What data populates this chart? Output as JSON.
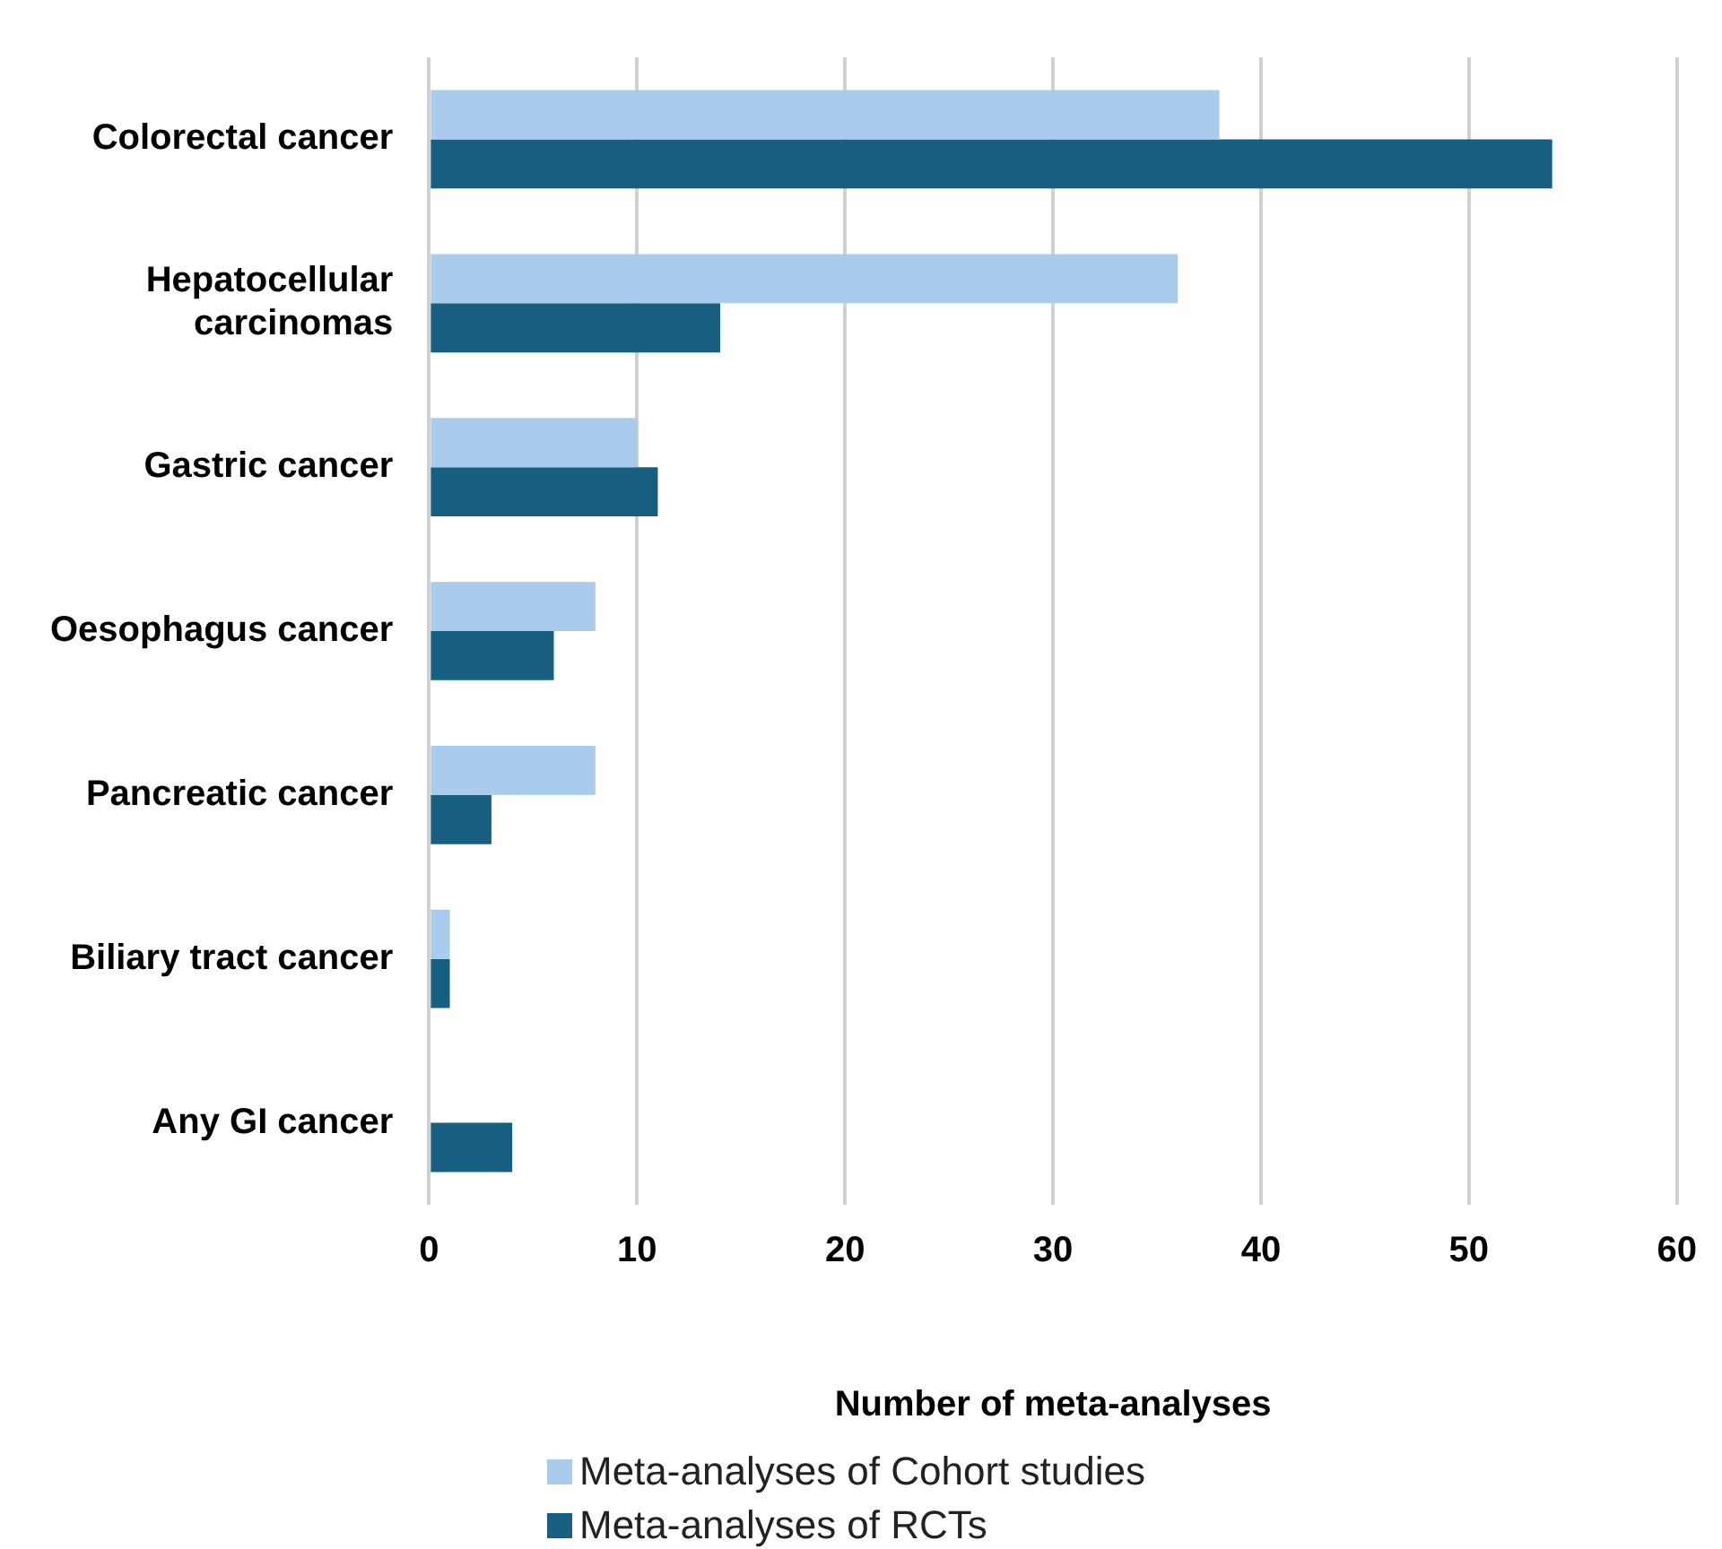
{
  "chart_data": {
    "type": "bar",
    "orientation": "horizontal",
    "xlabel": "Number of meta-analyses",
    "categories": [
      "Colorectal cancer",
      "Hepatocellular carcinomas",
      "Gastric cancer",
      "Oesophagus cancer",
      "Pancreatic cancer",
      "Biliary tract cancer",
      "Any GI cancer"
    ],
    "series": [
      {
        "name": "Meta-analyses of Cohort studies",
        "color": "#a9cbec",
        "values": [
          38,
          36,
          10,
          8,
          8,
          1,
          0
        ]
      },
      {
        "name": "Meta-analyses of RCTs",
        "color": "#175f80",
        "values": [
          54,
          14,
          11,
          6,
          3,
          1,
          4
        ]
      }
    ],
    "xlim": [
      0,
      60
    ],
    "xticks": [
      0,
      10,
      20,
      30,
      40,
      50,
      60
    ],
    "grid": "x",
    "legend": "bottom"
  }
}
